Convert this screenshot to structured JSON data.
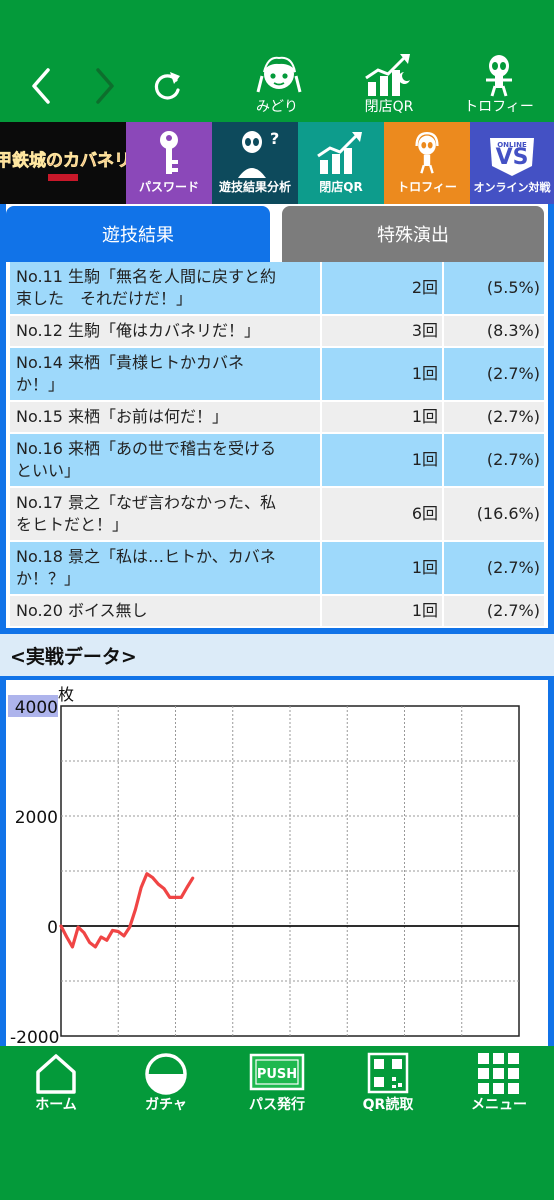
{
  "topbar": {
    "midori_label": "みどり",
    "closing_qr_label": "閉店QR",
    "trophy_label": "トロフィー"
  },
  "menu": {
    "logo_text": "甲鉄城のカバネリ",
    "password": "パスワード",
    "analysis": "遊技結果分析",
    "closing_qr": "閉店QR",
    "trophy": "トロフィー",
    "online_battle": "オンライン対戦",
    "vs_badge": "VS",
    "online_badge": "ONLINE"
  },
  "tabs": {
    "result": "遊技結果",
    "special": "特殊演出"
  },
  "results": [
    {
      "line1": "No.11 生駒「無名を人間に戻すと約",
      "line2": "束した　それだけだ！」",
      "count": "2回",
      "pct": "(5.5%)"
    },
    {
      "line1": "No.12 生駒「俺はカバネリだ！」",
      "line2": "",
      "count": "3回",
      "pct": "(8.3%)"
    },
    {
      "line1": "No.14 来栖「貴様ヒトかカバネ",
      "line2": "か！」",
      "count": "1回",
      "pct": "(2.7%)"
    },
    {
      "line1": "No.15 来栖「お前は何だ！」",
      "line2": "",
      "count": "1回",
      "pct": "(2.7%)"
    },
    {
      "line1": "No.16 来栖「あの世で稽古を受ける",
      "line2": "といい」",
      "count": "1回",
      "pct": "(2.7%)"
    },
    {
      "line1": "No.17 景之「なぜ言わなかった、私",
      "line2": "をヒトだと！」",
      "count": "6回",
      "pct": "(16.6%)"
    },
    {
      "line1": "No.18 景之「私は…ヒトか、カバネ",
      "line2": "か！？」",
      "count": "1回",
      "pct": "(2.7%)"
    },
    {
      "line1": "No.20 ボイス無し",
      "line2": "",
      "count": "1回",
      "pct": "(2.7%)"
    }
  ],
  "chart_section": {
    "title": "<実戦データ>"
  },
  "chart_data": {
    "type": "line",
    "ylabel": "枚",
    "ylim": [
      -2000,
      4000
    ],
    "yticks": [
      4000,
      2000,
      0,
      -2000
    ],
    "grid": true,
    "x_gridlines": 8,
    "series": [
      {
        "color": "#f04545",
        "values": [
          0,
          -200,
          -380,
          -20,
          -120,
          -300,
          -380,
          -200,
          -260,
          -80,
          -100,
          -180,
          -20,
          300,
          700,
          950,
          880,
          760,
          680,
          520,
          520,
          520,
          700,
          870
        ]
      }
    ],
    "x_max": 80
  },
  "bottom_nav": {
    "home": "ホーム",
    "gacha": "ガチャ",
    "pass": "パス発行",
    "qr": "QR読取",
    "menu": "メニュー",
    "push_badge": "PUSH"
  },
  "colors": {
    "green": "#049a3a",
    "blue": "#1173e8",
    "row_blue": "#9ed9fb",
    "row_gray": "#eeeeee",
    "line_red": "#f04545"
  }
}
